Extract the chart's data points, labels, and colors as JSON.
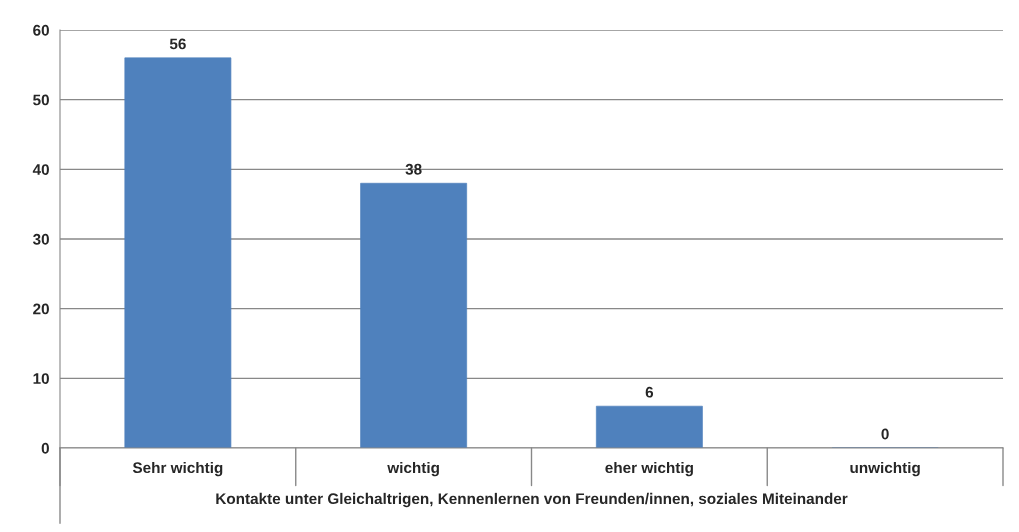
{
  "chart_data": {
    "type": "bar",
    "xlabel": "Kontakte unter Gleichaltrigen, Kennenlernen von Freunden/innen, soziales Miteinander",
    "categories": [
      "Sehr wichtig",
      "wichtig",
      "eher wichtig",
      "unwichtig"
    ],
    "values": [
      56,
      38,
      6,
      0
    ],
    "color": "#4f81bd",
    "ylim": [
      0,
      60
    ],
    "yticks": [
      0,
      10,
      20,
      30,
      40,
      50,
      60
    ],
    "grid": "y",
    "data_labels": true,
    "legend": false
  }
}
